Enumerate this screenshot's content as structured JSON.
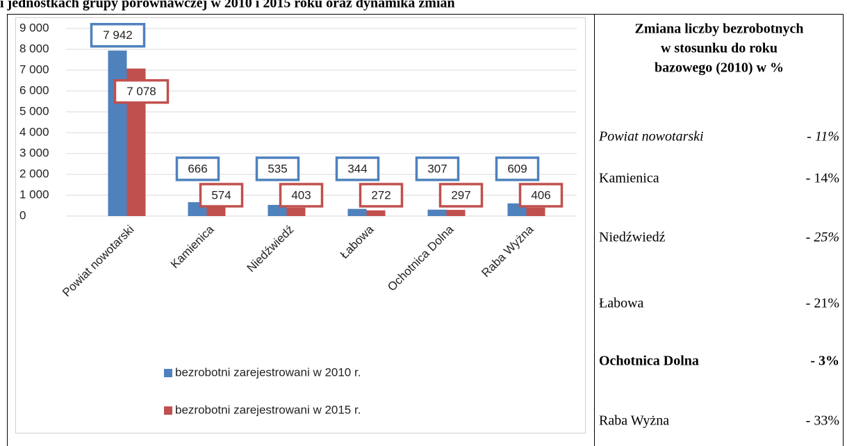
{
  "chart_data": {
    "type": "bar",
    "title": "i jednostkach grupy porównawczej w 2010 i 2015 roku oraz dynamika zmian",
    "categories": [
      "Powiat nowotarski",
      "Kamienica",
      "Niedźwiedź",
      "Łabowa",
      "Ochotnica Dolna",
      "Raba Wyżna"
    ],
    "series": [
      {
        "name": "bezrobotni zarejestrowani w 2010 r.",
        "color": "#4f81bd",
        "values": [
          7942,
          666,
          535,
          344,
          307,
          609
        ],
        "value_labels": [
          "7 942",
          "666",
          "535",
          "344",
          "307",
          "609"
        ]
      },
      {
        "name": "bezrobotni zarejestrowani w 2015 r.",
        "color": "#c0504d",
        "values": [
          7078,
          574,
          403,
          272,
          297,
          406
        ],
        "value_labels": [
          "7 078",
          "574",
          "403",
          "272",
          "297",
          "406"
        ]
      }
    ],
    "ylim": [
      0,
      9000
    ],
    "yticks": [
      0,
      {
        "value": 1000,
        "label": "1 000"
      },
      {
        "value": 2000,
        "label": "2 000"
      },
      {
        "value": 3000,
        "label": "3 000"
      },
      {
        "value": 4000,
        "label": "4 000"
      },
      {
        "value": 5000,
        "label": "5 000"
      },
      {
        "value": 6000,
        "label": "6 000"
      },
      {
        "value": 7000,
        "label": "7 000"
      },
      {
        "value": 8000,
        "label": "8 000"
      },
      {
        "value": 9000,
        "label": "9 000"
      }
    ],
    "grid": true,
    "legend": "bottom"
  },
  "table": {
    "header_lines": [
      "Zmiana liczby bezrobotnych",
      "w stosunku do roku",
      "bazowego (2010) w %"
    ],
    "rows": [
      [
        "Powiat nowotarski",
        "- 11%"
      ],
      [
        "Kamienica",
        "- 14%"
      ],
      [
        "Niedźwiedź",
        "- 25%"
      ],
      [
        "Łabowa",
        "- 21%"
      ],
      [
        "Ochotnica Dolna",
        "- 3%"
      ],
      [
        "Raba Wyżna",
        "- 33%"
      ]
    ]
  }
}
